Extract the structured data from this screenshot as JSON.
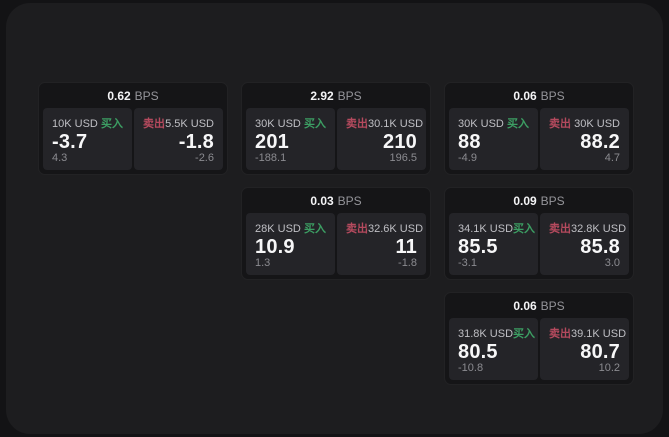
{
  "labels": {
    "bps_suffix": "BPS",
    "buy": "买入",
    "sell": "卖出"
  },
  "colors": {
    "page_background": "#131315",
    "surface": "#1d1d1f",
    "card_background": "#151517",
    "panel_background": "#242428",
    "buy_accent": "#3c9e63",
    "sell_accent": "#b54a5e"
  },
  "cards": [
    {
      "spread": "0.62",
      "buy": {
        "amount": "10K USD",
        "price": "-3.7",
        "sub": "4.3"
      },
      "sell": {
        "amount": "5.5K USD",
        "price": "-1.8",
        "sub": "-2.6"
      }
    },
    {
      "spread": "2.92",
      "buy": {
        "amount": "30K USD",
        "price": "201",
        "sub": "-188.1"
      },
      "sell": {
        "amount": "30.1K USD",
        "price": "210",
        "sub": "196.5"
      }
    },
    {
      "spread": "0.06",
      "buy": {
        "amount": "30K USD",
        "price": "88",
        "sub": "-4.9"
      },
      "sell": {
        "amount": "30K USD",
        "price": "88.2",
        "sub": "4.7"
      }
    },
    {
      "spread": "0.03",
      "buy": {
        "amount": "28K USD",
        "price": "10.9",
        "sub": "1.3"
      },
      "sell": {
        "amount": "32.6K USD",
        "price": "11",
        "sub": "-1.8"
      }
    },
    {
      "spread": "0.09",
      "buy": {
        "amount": "34.1K USD",
        "price": "85.5",
        "sub": "-3.1"
      },
      "sell": {
        "amount": "32.8K USD",
        "price": "85.8",
        "sub": "3.0"
      }
    },
    {
      "spread": "0.06",
      "buy": {
        "amount": "31.8K USD",
        "price": "80.5",
        "sub": "-10.8"
      },
      "sell": {
        "amount": "39.1K USD",
        "price": "80.7",
        "sub": "10.2"
      }
    }
  ]
}
